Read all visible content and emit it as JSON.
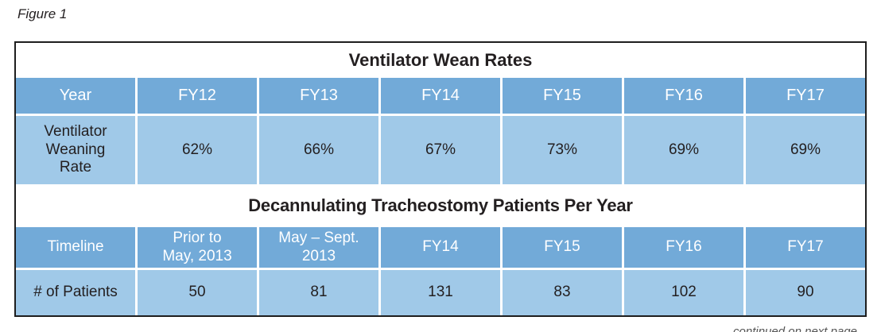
{
  "figure_label": "Figure 1",
  "colors": {
    "header_blue": "#72aad8",
    "light_blue": "#a0c9e8",
    "border_dark": "#1e1e1e",
    "header_text": "#ffffff",
    "body_text": "#231f20"
  },
  "t1": {
    "title": "Ventilator Wean Rates",
    "header": [
      "Year",
      "FY12",
      "FY13",
      "FY14",
      "FY15",
      "FY16",
      "FY17"
    ],
    "row_label": "Ventilator\nWeaning\nRate",
    "values": [
      "62%",
      "66%",
      "67%",
      "73%",
      "69%",
      "69%"
    ]
  },
  "t2": {
    "title": "Decannulating Tracheostomy Patients Per Year",
    "header": [
      "Timeline",
      "Prior to\nMay, 2013",
      "May – Sept.\n2013",
      "FY14",
      "FY15",
      "FY16",
      "FY17"
    ],
    "row_label": "# of Patients",
    "values": [
      "50",
      "81",
      "131",
      "83",
      "102",
      "90"
    ]
  },
  "page_bottom_cutoff_text": "continued on next page",
  "chart_data": [
    {
      "type": "table",
      "title": "Ventilator Wean Rates",
      "categories": [
        "FY12",
        "FY13",
        "FY14",
        "FY15",
        "FY16",
        "FY17"
      ],
      "series": [
        {
          "name": "Ventilator Weaning Rate",
          "values": [
            "62%",
            "66%",
            "67%",
            "73%",
            "69%",
            "69%"
          ]
        }
      ]
    },
    {
      "type": "table",
      "title": "Decannulating Tracheostomy Patients Per Year",
      "categories": [
        "Prior to May, 2013",
        "May – Sept. 2013",
        "FY14",
        "FY15",
        "FY16",
        "FY17"
      ],
      "series": [
        {
          "name": "# of Patients",
          "values": [
            50,
            81,
            131,
            83,
            102,
            90
          ]
        }
      ]
    }
  ]
}
